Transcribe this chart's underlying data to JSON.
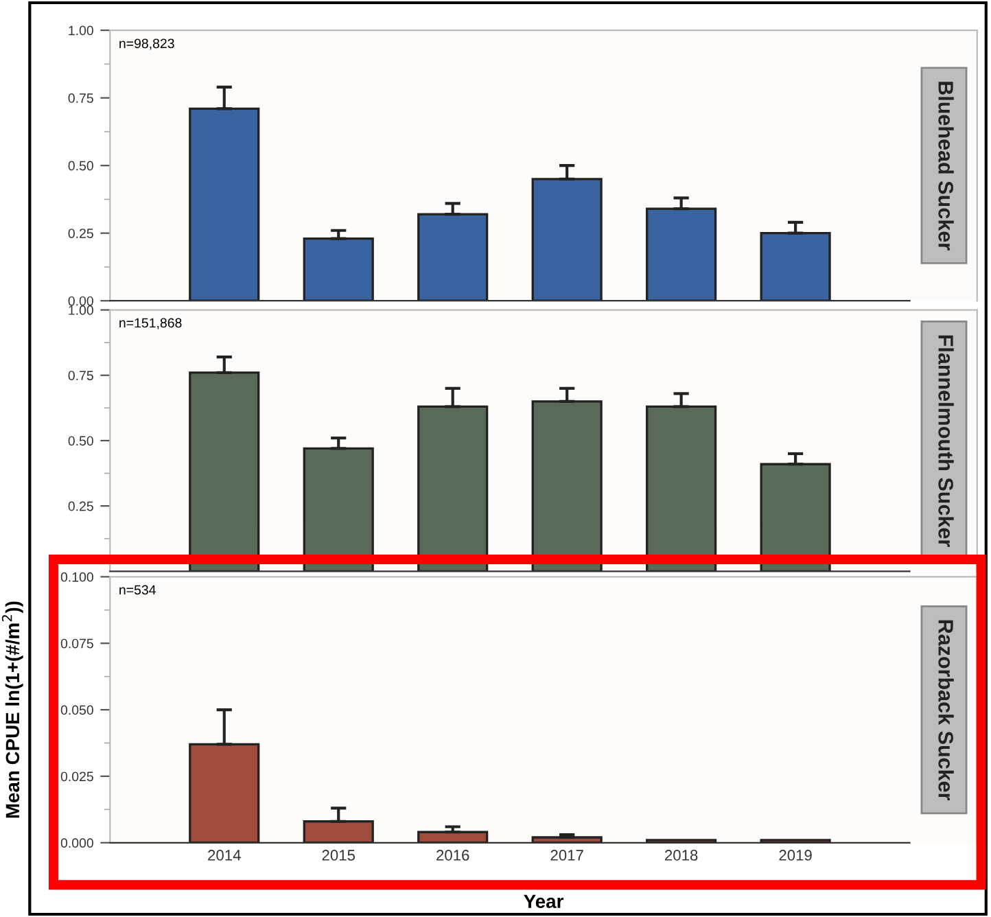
{
  "chart_data": [
    {
      "type": "bar",
      "annotations": [
        "Bluehead Sucker",
        "n=98,823"
      ],
      "categories": [
        "2014",
        "2015",
        "2016",
        "2017",
        "2018",
        "2019"
      ],
      "color": "#3a64a0",
      "values": [
        0.71,
        0.23,
        0.32,
        0.45,
        0.34,
        0.25
      ],
      "errors": [
        [
          0.71,
          0.79
        ],
        [
          0.23,
          0.26
        ],
        [
          0.32,
          0.36
        ],
        [
          0.45,
          0.5
        ],
        [
          0.34,
          0.38
        ],
        [
          0.25,
          0.29
        ]
      ],
      "ylim": [
        0,
        1.0
      ],
      "yticks": [
        {
          "value": 0,
          "label": "0.00"
        },
        {
          "value": 0.25,
          "label": "0.25"
        },
        {
          "value": 0.5,
          "label": "0.50"
        },
        {
          "value": 0.75,
          "label": "0.75"
        },
        {
          "value": 1.0,
          "label": "1.00"
        }
      ],
      "tick_labels": "y",
      "grid": false,
      "legend": false
    },
    {
      "type": "bar",
      "annotations": [
        "Flannelmouth Sucker",
        "n=151,868"
      ],
      "categories": [
        "2014",
        "2015",
        "2016",
        "2017",
        "2018",
        "2019"
      ],
      "color": "#5a6a58",
      "values": [
        0.76,
        0.47,
        0.63,
        0.65,
        0.63,
        0.41
      ],
      "errors": [
        [
          0.76,
          0.82
        ],
        [
          0.47,
          0.51
        ],
        [
          0.63,
          0.7
        ],
        [
          0.65,
          0.7
        ],
        [
          0.63,
          0.68
        ],
        [
          0.41,
          0.45
        ]
      ],
      "ylim": [
        0,
        1.0
      ],
      "yticks": [
        {
          "value": 0.25,
          "label": "0.25"
        },
        {
          "value": 0.5,
          "label": "0.50"
        },
        {
          "value": 0.75,
          "label": "0.75"
        },
        {
          "value": 1.0,
          "label": "1.00"
        }
      ],
      "tick_labels": "y",
      "grid": false,
      "legend": false
    },
    {
      "type": "bar",
      "annotations": [
        "Razorback Sucker",
        "n=534"
      ],
      "xlabel": "Year",
      "ylabel": "Mean CPUE ln(1+(#/m$^{2}$))",
      "categories": [
        "2014",
        "2015",
        "2016",
        "2017",
        "2018",
        "2019"
      ],
      "color": "#a04c3c",
      "values": [
        0.037,
        0.008,
        0.004,
        0.002,
        0.001,
        0.001
      ],
      "errors": [
        [
          0.037,
          0.05
        ],
        [
          0.008,
          0.013
        ],
        [
          0.004,
          0.006
        ],
        [
          0.002,
          0.003
        ],
        null,
        null
      ],
      "ylim": [
        0,
        0.1
      ],
      "yticks": [
        {
          "value": 0,
          "label": "0.000"
        },
        {
          "value": 0.025,
          "label": "0.025"
        },
        {
          "value": 0.05,
          "label": "0.050"
        },
        {
          "value": 0.075,
          "label": "0.075"
        },
        {
          "value": 0.1,
          "label": "0.100"
        }
      ],
      "grid": false,
      "legend": false
    }
  ]
}
